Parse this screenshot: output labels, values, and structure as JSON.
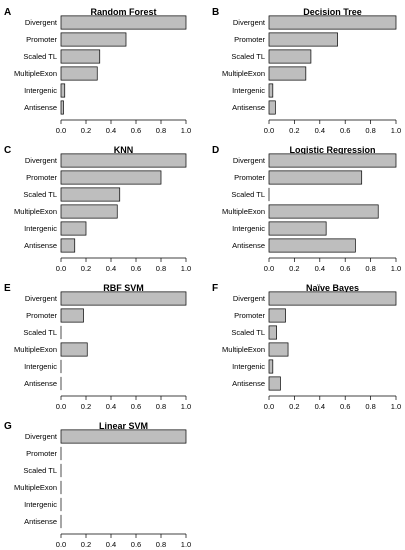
{
  "figure": {
    "bar_color": "#bebebe",
    "edge_color": "#000000"
  },
  "chart_data": [
    {
      "panel": "A",
      "type": "bar",
      "orientation": "horizontal",
      "title": "Random Forest",
      "categories": [
        "Divergent",
        "Promoter",
        "Scaled TL",
        "MultipleExon",
        "Intergenic",
        "Antisense"
      ],
      "values": [
        1.0,
        0.52,
        0.31,
        0.29,
        0.03,
        0.02
      ],
      "xlim": [
        0,
        1
      ],
      "xticks": [
        "0.0",
        "0.2",
        "0.4",
        "0.6",
        "0.8",
        "1.0"
      ]
    },
    {
      "panel": "B",
      "type": "bar",
      "orientation": "horizontal",
      "title": "Decision Tree",
      "categories": [
        "Divergent",
        "Promoter",
        "Scaled TL",
        "MultipleExon",
        "Intergenic",
        "Antisense"
      ],
      "values": [
        1.0,
        0.54,
        0.33,
        0.29,
        0.03,
        0.05
      ],
      "xlim": [
        0,
        1
      ],
      "xticks": [
        "0.0",
        "0.2",
        "0.4",
        "0.6",
        "0.8",
        "1.0"
      ]
    },
    {
      "panel": "C",
      "type": "bar",
      "orientation": "horizontal",
      "title": "KNN",
      "categories": [
        "Divergent",
        "Promoter",
        "Scaled TL",
        "MultipleExon",
        "Intergenic",
        "Antisense"
      ],
      "values": [
        1.0,
        0.8,
        0.47,
        0.45,
        0.2,
        0.11
      ],
      "xlim": [
        0,
        1
      ],
      "xticks": [
        "0.0",
        "0.2",
        "0.4",
        "0.6",
        "0.8",
        "1.0"
      ]
    },
    {
      "panel": "D",
      "type": "bar",
      "orientation": "horizontal",
      "title": "Logistic Regression",
      "categories": [
        "Divergent",
        "Promoter",
        "Scaled TL",
        "MultipleExon",
        "Intergenic",
        "Antisense"
      ],
      "values": [
        1.0,
        0.73,
        0.0,
        0.86,
        0.45,
        0.68
      ],
      "xlim": [
        0,
        1
      ],
      "xticks": [
        "0.0",
        "0.2",
        "0.4",
        "0.6",
        "0.8",
        "1.0"
      ]
    },
    {
      "panel": "E",
      "type": "bar",
      "orientation": "horizontal",
      "title": "RBF SVM",
      "categories": [
        "Divergent",
        "Promoter",
        "Scaled TL",
        "MultipleExon",
        "Intergenic",
        "Antisense"
      ],
      "values": [
        1.0,
        0.18,
        0.0,
        0.21,
        0.0,
        0.0
      ],
      "xlim": [
        0,
        1
      ],
      "xticks": [
        "0.0",
        "0.2",
        "0.4",
        "0.6",
        "0.8",
        "1.0"
      ]
    },
    {
      "panel": "F",
      "type": "bar",
      "orientation": "horizontal",
      "title": "Naïve Bayes",
      "categories": [
        "Divergent",
        "Promoter",
        "Scaled TL",
        "MultipleExon",
        "Intergenic",
        "Antisense"
      ],
      "values": [
        1.0,
        0.13,
        0.06,
        0.15,
        0.03,
        0.09
      ],
      "xlim": [
        0,
        1
      ],
      "xticks": [
        "0.0",
        "0.2",
        "0.4",
        "0.6",
        "0.8",
        "1.0"
      ]
    },
    {
      "panel": "G",
      "type": "bar",
      "orientation": "horizontal",
      "title": "Linear SVM",
      "categories": [
        "Divergent",
        "Promoter",
        "Scaled TL",
        "MultipleExon",
        "Intergenic",
        "Antisense"
      ],
      "values": [
        1.0,
        0.0,
        0.0,
        0.0,
        0.0,
        0.0
      ],
      "xlim": [
        0,
        1
      ],
      "xticks": [
        "0.0",
        "0.2",
        "0.4",
        "0.6",
        "0.8",
        "1.0"
      ]
    }
  ]
}
